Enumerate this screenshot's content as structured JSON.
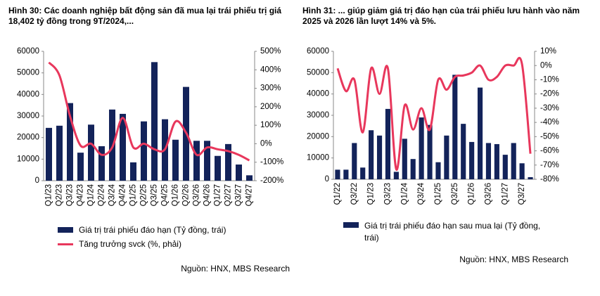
{
  "chart_data": [
    {
      "type": "combo",
      "title": "Hình 30: Các doanh nghiệp bất động sản đã mua lại trái phiếu trị giá 18,402 tỷ đồng trong 9T/2024,...",
      "categories": [
        "Q1/23",
        "Q2/23",
        "Q3/23",
        "Q4/23",
        "Q1/24",
        "Q2/24",
        "Q3/24",
        "Q4/24",
        "Q1/25",
        "Q2/25",
        "Q3/25",
        "Q4/25",
        "Q1/26",
        "Q2/26",
        "Q3/26",
        "Q4/26",
        "Q1/27",
        "Q2/27",
        "Q3/27",
        "Q4/27"
      ],
      "series": [
        {
          "name": "Giá trị trái phiếu đáo hạn (Tỷ đồng, trái)",
          "type": "bar",
          "color": "#13235a",
          "values": [
            24500,
            25500,
            36000,
            13000,
            26000,
            16000,
            33000,
            31000,
            8500,
            27500,
            55000,
            28500,
            19000,
            43500,
            18500,
            18500,
            11500,
            17000,
            7500,
            2500
          ]
        },
        {
          "name": "Tăng trưởng svck (%, phải)",
          "type": "line",
          "axis": "y2",
          "color": "#e8375c",
          "values": [
            440,
            370,
            150,
            -10,
            0,
            -60,
            -20,
            140,
            -20,
            0,
            -30,
            -30,
            120,
            60,
            -60,
            -20,
            -30,
            -40,
            -60,
            -90
          ]
        }
      ],
      "ylim": [
        0,
        60000
      ],
      "yticks": [
        0,
        10000,
        20000,
        30000,
        40000,
        50000,
        60000
      ],
      "y2lim": [
        -200,
        500
      ],
      "y2ticks": [
        {
          "value": -200,
          "label": "-200%"
        },
        {
          "value": -100,
          "label": "-100%"
        },
        {
          "value": 0,
          "label": "0%"
        },
        {
          "value": 100,
          "label": "100%"
        },
        {
          "value": 200,
          "label": "200%"
        },
        {
          "value": 300,
          "label": "300%"
        },
        {
          "value": 400,
          "label": "400%"
        },
        {
          "value": 500,
          "label": "500%"
        }
      ],
      "source": "Nguồn: HNX, MBS Research"
    },
    {
      "type": "combo",
      "title": "Hình 31: ... giúp giảm giá trị đáo hạn của trái phiếu lưu hành vào năm 2025 và 2026 lần lượt 14% và 5%.",
      "categories": [
        "Q1/22",
        null,
        "Q3/22",
        null,
        "Q1/23",
        null,
        "Q3/23",
        null,
        "Q1/24",
        null,
        "Q3/24",
        null,
        "Q1/25",
        null,
        "Q3/25",
        null,
        "Q1/26",
        null,
        "Q3/26",
        null,
        "Q1/27",
        null,
        "Q3/27",
        null
      ],
      "series": [
        {
          "name": "Giá trị trái phiếu đáo hạn sau mua lại (Tỷ đồng, trái)",
          "type": "bar",
          "color": "#13235a",
          "values": [
            4500,
            4500,
            17000,
            5500,
            23000,
            20500,
            33000,
            3500,
            19000,
            9500,
            29000,
            25500,
            8000,
            20500,
            49000,
            26000,
            17500,
            43000,
            17000,
            16500,
            11500,
            17000,
            7500,
            1000
          ]
        },
        {
          "type": "line",
          "axis": "y2",
          "color": "#e8375c",
          "values": [
            -2,
            -18,
            -10,
            -47,
            -2,
            -20,
            -2,
            -73,
            -28,
            -45,
            -30,
            -45,
            -10,
            -17,
            -8,
            -7,
            -5,
            0,
            -10,
            -8,
            0,
            0,
            1,
            -62
          ]
        }
      ],
      "ylim": [
        0,
        60000
      ],
      "yticks": [
        0,
        10000,
        20000,
        30000,
        40000,
        50000,
        60000
      ],
      "y2lim": [
        -80,
        10
      ],
      "y2ticks": [
        {
          "value": -80,
          "label": "-80%"
        },
        {
          "value": -70,
          "label": "-70%"
        },
        {
          "value": -60,
          "label": "-60%"
        },
        {
          "value": -50,
          "label": "-50%"
        },
        {
          "value": -40,
          "label": "-40%"
        },
        {
          "value": -30,
          "label": "-30%"
        },
        {
          "value": -20,
          "label": "-20%"
        },
        {
          "value": -10,
          "label": "-10%"
        },
        {
          "value": 0,
          "label": "0%"
        },
        {
          "value": 10,
          "label": "10%"
        }
      ],
      "source": "Nguồn: HNX, MBS Research"
    }
  ]
}
